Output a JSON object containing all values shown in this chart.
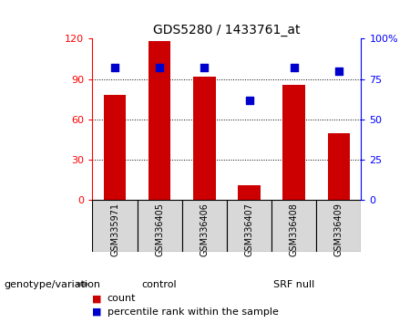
{
  "title": "GDS5280 / 1433761_at",
  "samples": [
    "GSM335971",
    "GSM336405",
    "GSM336406",
    "GSM336407",
    "GSM336408",
    "GSM336409"
  ],
  "counts": [
    78,
    118,
    92,
    11,
    86,
    50
  ],
  "percentiles": [
    82,
    82,
    82,
    62,
    82,
    80
  ],
  "groups": [
    {
      "label": "control",
      "start": 0,
      "end": 3,
      "color": "#90EE90"
    },
    {
      "label": "SRF null",
      "start": 3,
      "end": 6,
      "color": "#44DD44"
    }
  ],
  "bar_color": "#CC0000",
  "dot_color": "#0000CC",
  "left_ylim": [
    0,
    120
  ],
  "right_ylim": [
    0,
    100
  ],
  "left_yticks": [
    0,
    30,
    60,
    90,
    120
  ],
  "right_yticks": [
    0,
    25,
    50,
    75,
    100
  ],
  "right_yticklabels": [
    "0",
    "25",
    "50",
    "75",
    "100%"
  ],
  "left_yticklabels": [
    "0",
    "30",
    "60",
    "90",
    "120"
  ],
  "grid_color": "black",
  "bg_color": "#d8d8d8",
  "cell_color": "#d8d8d8",
  "plot_bg": "white",
  "legend_count_label": "count",
  "legend_pct_label": "percentile rank within the sample",
  "genotype_label": "genotype/variation",
  "bar_width": 0.5
}
